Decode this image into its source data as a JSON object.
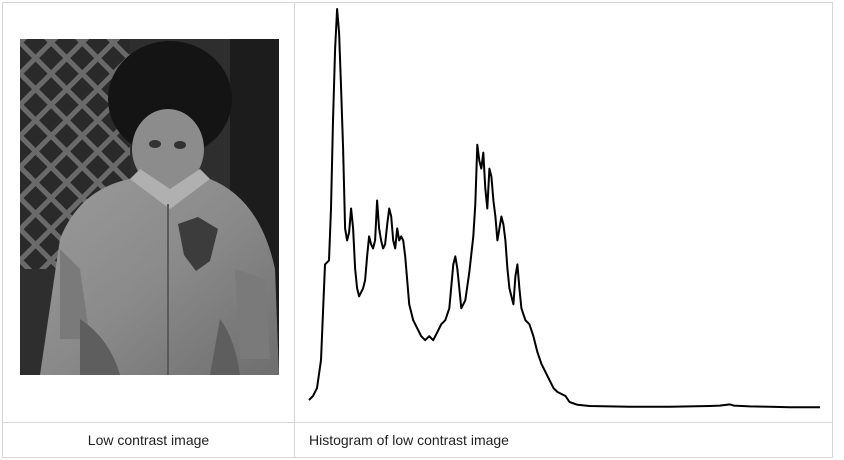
{
  "captions": {
    "left": "Low contrast image",
    "right": "Histogram of low contrast image"
  },
  "photo": {
    "subject": "grayscale photo of a child in a jacket in front of a lattice",
    "background_color": "#3a3a3a"
  },
  "chart_data": {
    "type": "line",
    "title": "",
    "xlabel": "",
    "ylabel": "",
    "x_range": [
      0,
      255
    ],
    "y_range": [
      0,
      1
    ],
    "grid": false,
    "legend": "none",
    "color": "#000000",
    "points": [
      [
        0,
        0.02
      ],
      [
        2,
        0.03
      ],
      [
        4,
        0.05
      ],
      [
        6,
        0.12
      ],
      [
        8,
        0.36
      ],
      [
        10,
        0.37
      ],
      [
        11,
        0.5
      ],
      [
        12,
        0.72
      ],
      [
        13,
        0.9
      ],
      [
        14,
        1.0
      ],
      [
        15,
        0.94
      ],
      [
        16,
        0.8
      ],
      [
        17,
        0.65
      ],
      [
        18,
        0.45
      ],
      [
        19,
        0.42
      ],
      [
        20,
        0.44
      ],
      [
        21,
        0.5
      ],
      [
        22,
        0.45
      ],
      [
        23,
        0.35
      ],
      [
        24,
        0.3
      ],
      [
        25,
        0.28
      ],
      [
        26,
        0.29
      ],
      [
        27,
        0.3
      ],
      [
        28,
        0.32
      ],
      [
        29,
        0.38
      ],
      [
        30,
        0.43
      ],
      [
        31,
        0.41
      ],
      [
        32,
        0.4
      ],
      [
        33,
        0.42
      ],
      [
        34,
        0.52
      ],
      [
        35,
        0.45
      ],
      [
        36,
        0.42
      ],
      [
        37,
        0.4
      ],
      [
        38,
        0.41
      ],
      [
        39,
        0.46
      ],
      [
        40,
        0.5
      ],
      [
        41,
        0.48
      ],
      [
        42,
        0.42
      ],
      [
        43,
        0.4
      ],
      [
        44,
        0.45
      ],
      [
        45,
        0.42
      ],
      [
        46,
        0.43
      ],
      [
        47,
        0.42
      ],
      [
        48,
        0.38
      ],
      [
        49,
        0.32
      ],
      [
        50,
        0.26
      ],
      [
        52,
        0.22
      ],
      [
        54,
        0.2
      ],
      [
        56,
        0.18
      ],
      [
        58,
        0.17
      ],
      [
        60,
        0.18
      ],
      [
        62,
        0.17
      ],
      [
        64,
        0.19
      ],
      [
        66,
        0.21
      ],
      [
        68,
        0.22
      ],
      [
        70,
        0.25
      ],
      [
        72,
        0.36
      ],
      [
        73,
        0.38
      ],
      [
        74,
        0.35
      ],
      [
        75,
        0.3
      ],
      [
        76,
        0.25
      ],
      [
        78,
        0.27
      ],
      [
        80,
        0.34
      ],
      [
        82,
        0.43
      ],
      [
        83,
        0.51
      ],
      [
        84,
        0.66
      ],
      [
        85,
        0.62
      ],
      [
        86,
        0.6
      ],
      [
        87,
        0.64
      ],
      [
        88,
        0.55
      ],
      [
        89,
        0.5
      ],
      [
        90,
        0.6
      ],
      [
        91,
        0.58
      ],
      [
        92,
        0.52
      ],
      [
        93,
        0.48
      ],
      [
        94,
        0.42
      ],
      [
        95,
        0.45
      ],
      [
        96,
        0.48
      ],
      [
        97,
        0.46
      ],
      [
        98,
        0.42
      ],
      [
        99,
        0.35
      ],
      [
        100,
        0.3
      ],
      [
        102,
        0.26
      ],
      [
        103,
        0.33
      ],
      [
        104,
        0.36
      ],
      [
        105,
        0.3
      ],
      [
        106,
        0.25
      ],
      [
        108,
        0.22
      ],
      [
        110,
        0.21
      ],
      [
        112,
        0.18
      ],
      [
        114,
        0.14
      ],
      [
        116,
        0.11
      ],
      [
        118,
        0.09
      ],
      [
        120,
        0.07
      ],
      [
        122,
        0.05
      ],
      [
        124,
        0.04
      ],
      [
        126,
        0.035
      ],
      [
        128,
        0.03
      ],
      [
        130,
        0.015
      ],
      [
        134,
        0.008
      ],
      [
        140,
        0.005
      ],
      [
        150,
        0.004
      ],
      [
        160,
        0.003
      ],
      [
        170,
        0.003
      ],
      [
        180,
        0.003
      ],
      [
        190,
        0.004
      ],
      [
        200,
        0.005
      ],
      [
        205,
        0.006
      ],
      [
        210,
        0.009
      ],
      [
        212,
        0.006
      ],
      [
        220,
        0.004
      ],
      [
        230,
        0.003
      ],
      [
        240,
        0.002
      ],
      [
        255,
        0.002
      ]
    ]
  }
}
